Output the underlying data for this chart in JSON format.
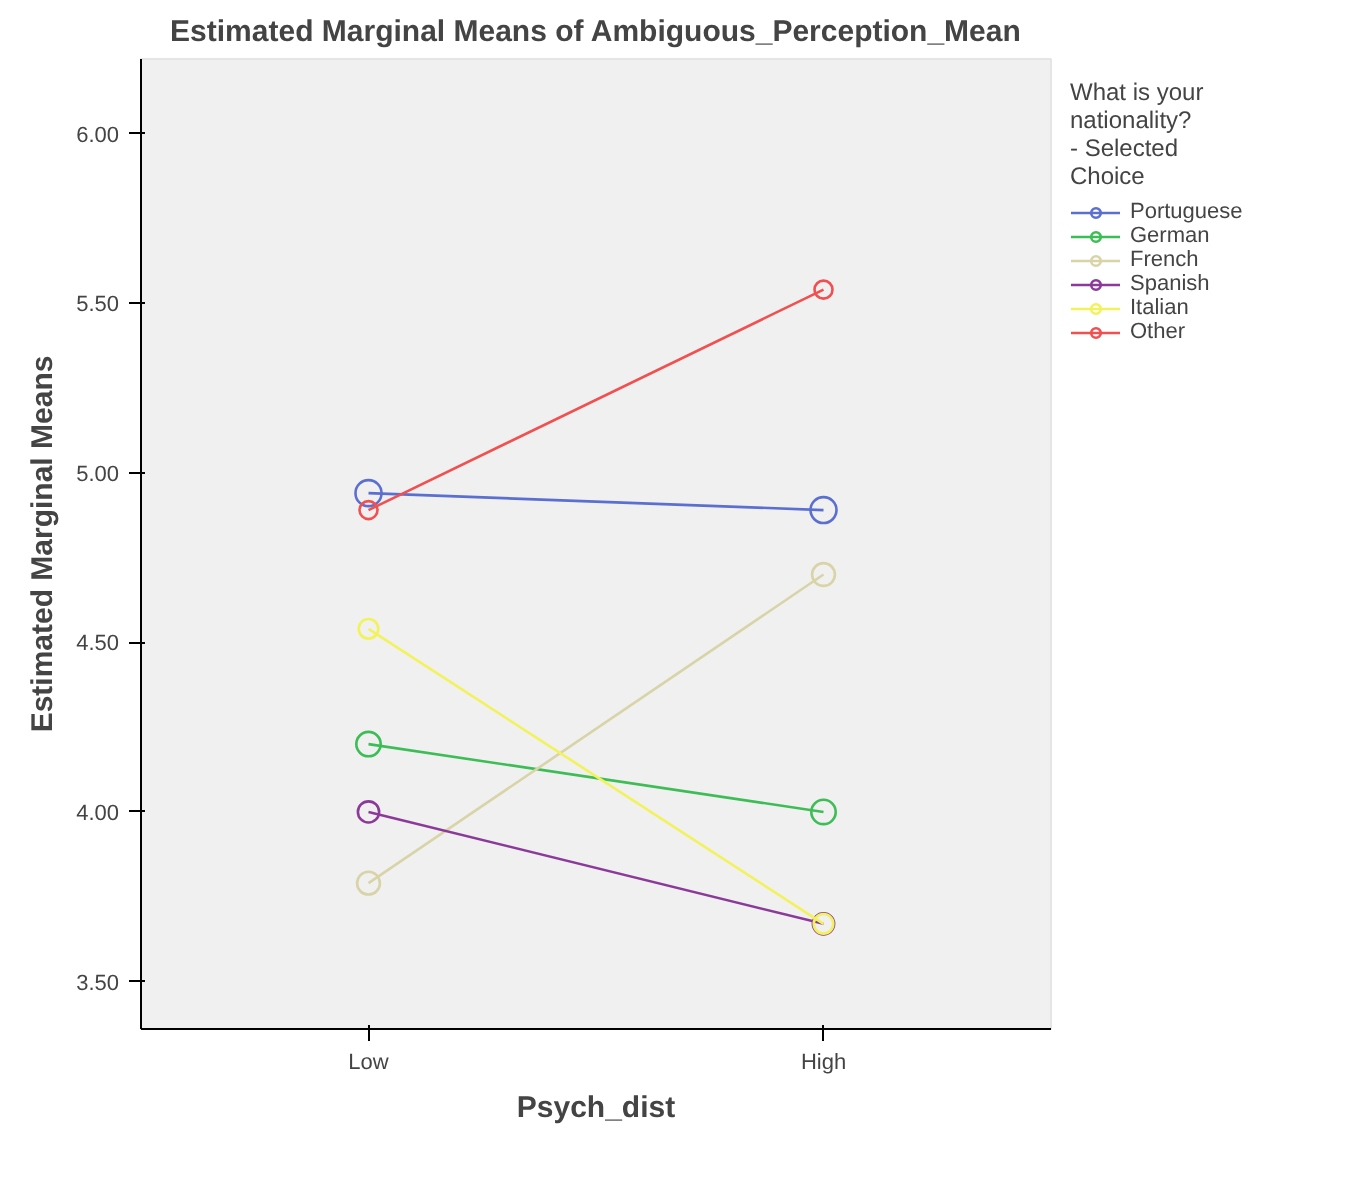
{
  "chart_data": {
    "type": "line",
    "title": "Estimated Marginal Means of Ambiguous_Perception_Mean",
    "xlabel": "Psych_dist",
    "ylabel": "Estimated Marginal Means",
    "legend_title": "What is your nationality? - Selected Choice",
    "categories": [
      "Low",
      "High"
    ],
    "series": [
      {
        "name": "Portuguese",
        "color": "#5b6fd0",
        "values": [
          4.94,
          4.89
        ]
      },
      {
        "name": "German",
        "color": "#3dbd55",
        "values": [
          4.2,
          4.0
        ]
      },
      {
        "name": "French",
        "color": "#d8d4a8",
        "values": [
          3.79,
          4.7
        ]
      },
      {
        "name": "Spanish",
        "color": "#8b3a9a",
        "values": [
          4.0,
          3.67
        ]
      },
      {
        "name": "Italian",
        "color": "#f2f25a",
        "values": [
          4.54,
          3.67
        ]
      },
      {
        "name": "Other",
        "color": "#f05050",
        "values": [
          4.89,
          5.54
        ]
      }
    ],
    "ylim": [
      3.36,
      6.22
    ],
    "yticks": [
      {
        "value": 3.5,
        "label": "3.50"
      },
      {
        "value": 4.0,
        "label": "4.00"
      },
      {
        "value": 4.5,
        "label": "4.50"
      },
      {
        "value": 5.0,
        "label": "5.00"
      },
      {
        "value": 5.5,
        "label": "5.50"
      },
      {
        "value": 6.0,
        "label": "6.00"
      }
    ],
    "grid": false,
    "legend": "right",
    "marker": "circle",
    "line_style": "solid"
  }
}
